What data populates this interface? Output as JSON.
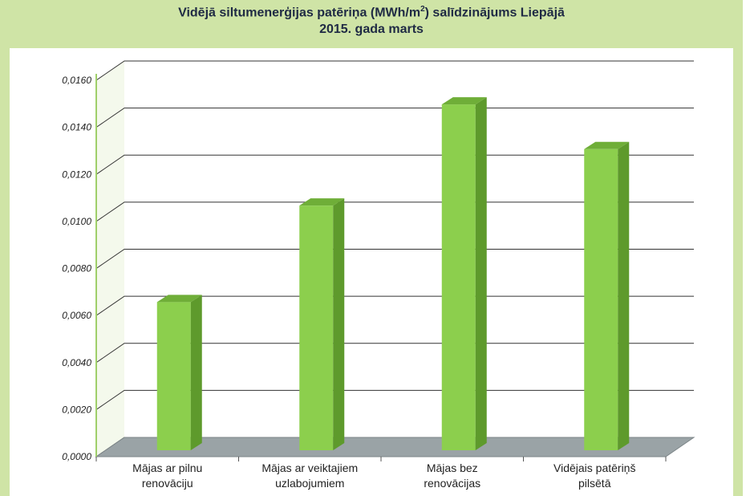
{
  "chart_data": {
    "type": "bar",
    "title_line1_pre": "Vidējā siltumenerģijas patēriņa (MWh/m",
    "title_sup": "2",
    "title_line1_post": ") salīdzinājums Liepājā",
    "title_line2": "2015. gada marts",
    "categories": [
      [
        "Mājas ar pilnu",
        "renovāciju"
      ],
      [
        "Mājas ar veiktajiem",
        "uzlabojumiem"
      ],
      [
        "Mājas bez",
        "renovācijas"
      ],
      [
        "Vidējais patēriņš",
        "pilsētā"
      ]
    ],
    "values": [
      0.0063,
      0.0104,
      0.0147,
      0.0128
    ],
    "ylim": [
      0,
      0.016
    ],
    "yticks": [
      "0,0000",
      "0,0020",
      "0,0040",
      "0,0060",
      "0,0080",
      "0,0100",
      "0,0120",
      "0,0140",
      "0,0160"
    ],
    "grid": true,
    "colors": {
      "bar_front": "#8ccf4d",
      "bar_side": "#5e9a2c",
      "bar_top": "#6fae38",
      "floor": "#9aa3a6",
      "gridline": "#333333",
      "frame_bg": "#cfe4a6"
    }
  }
}
